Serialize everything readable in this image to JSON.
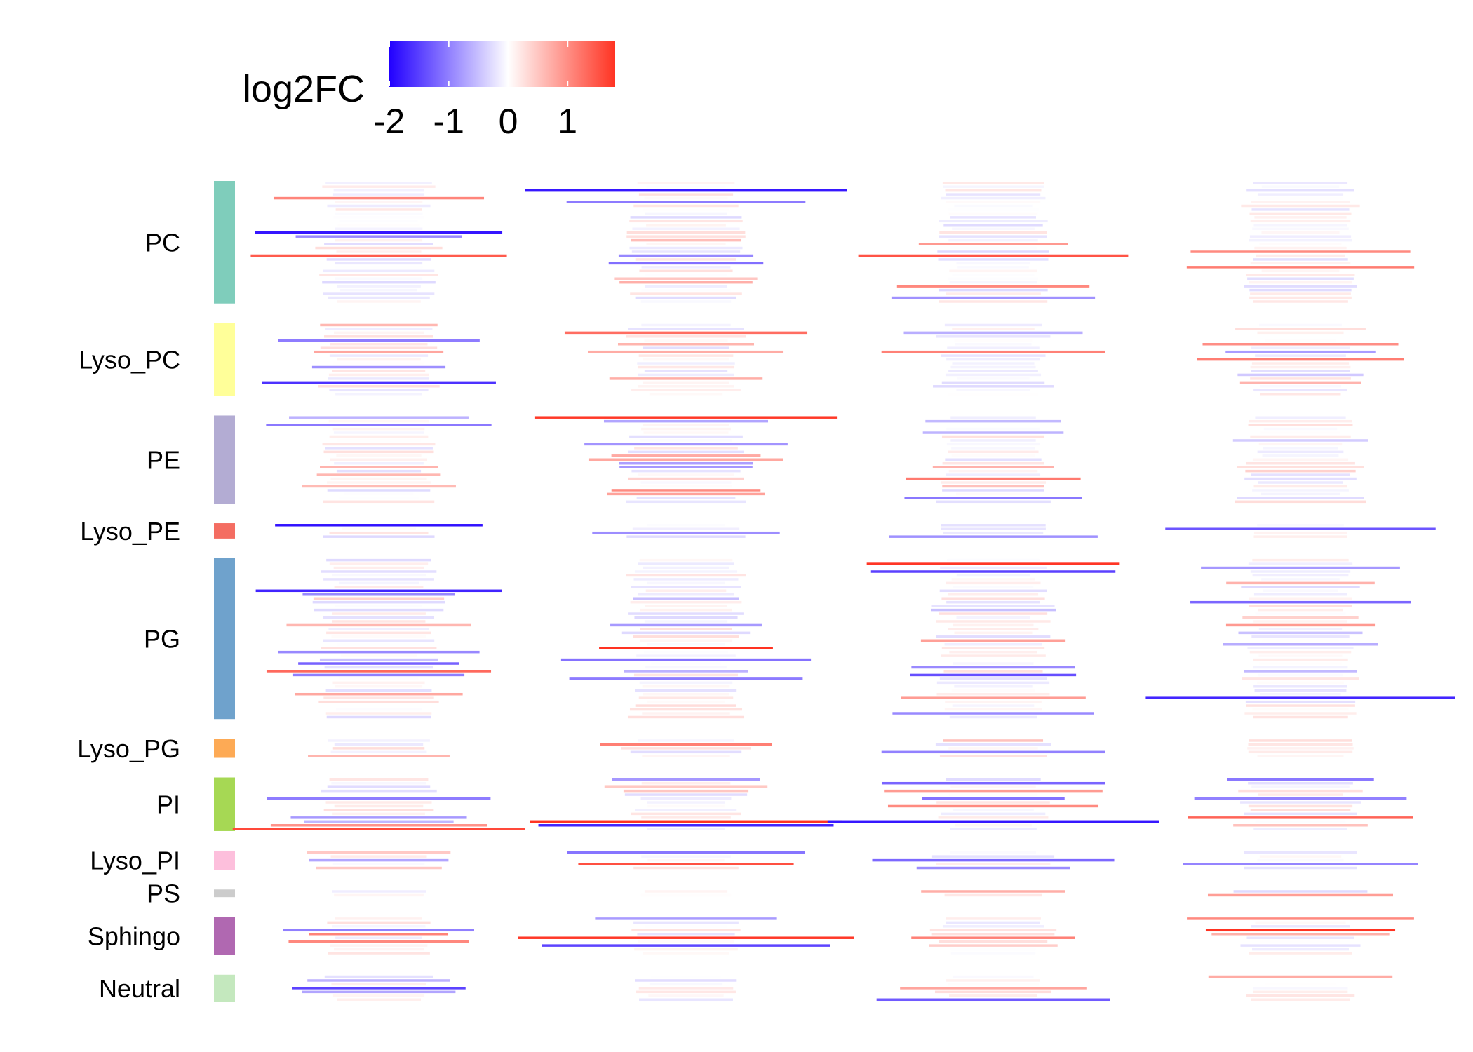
{
  "chart_data": {
    "type": "heatmap",
    "title": "",
    "xlabel": "",
    "ylabel": "",
    "legend": {
      "title": "log2FC",
      "ticks": [
        "-2",
        "-1",
        "0",
        "1"
      ],
      "range": [
        -2.0,
        1.8
      ],
      "low_color": "#2200ff",
      "mid_color": "#ffffff",
      "high_color": "#ff3322",
      "placement": "top-left"
    },
    "groups": [
      {
        "name": "PC",
        "color": "#7fcdbb",
        "n": 32
      },
      {
        "name": "Lyso_PC",
        "color": "#ffff99",
        "n": 19
      },
      {
        "name": "PE",
        "color": "#b3acd3",
        "n": 23
      },
      {
        "name": "Lyso_PE",
        "color": "#f46d62",
        "n": 4
      },
      {
        "name": "PG",
        "color": "#6fa2cc",
        "n": 42
      },
      {
        "name": "Lyso_PG",
        "color": "#fdaa55",
        "n": 5
      },
      {
        "name": "PI",
        "color": "#a6d854",
        "n": 14
      },
      {
        "name": "Lyso_PI",
        "color": "#fdbfdc",
        "n": 5
      },
      {
        "name": "PS",
        "color": "#cccccc",
        "n": 2
      },
      {
        "name": "Sphingo",
        "color": "#b068b1",
        "n": 10
      },
      {
        "name": "Neutral",
        "color": "#c4e8be",
        "n": 7
      }
    ],
    "columns": 4,
    "cell_values_estimated": true,
    "seed": 12345
  }
}
